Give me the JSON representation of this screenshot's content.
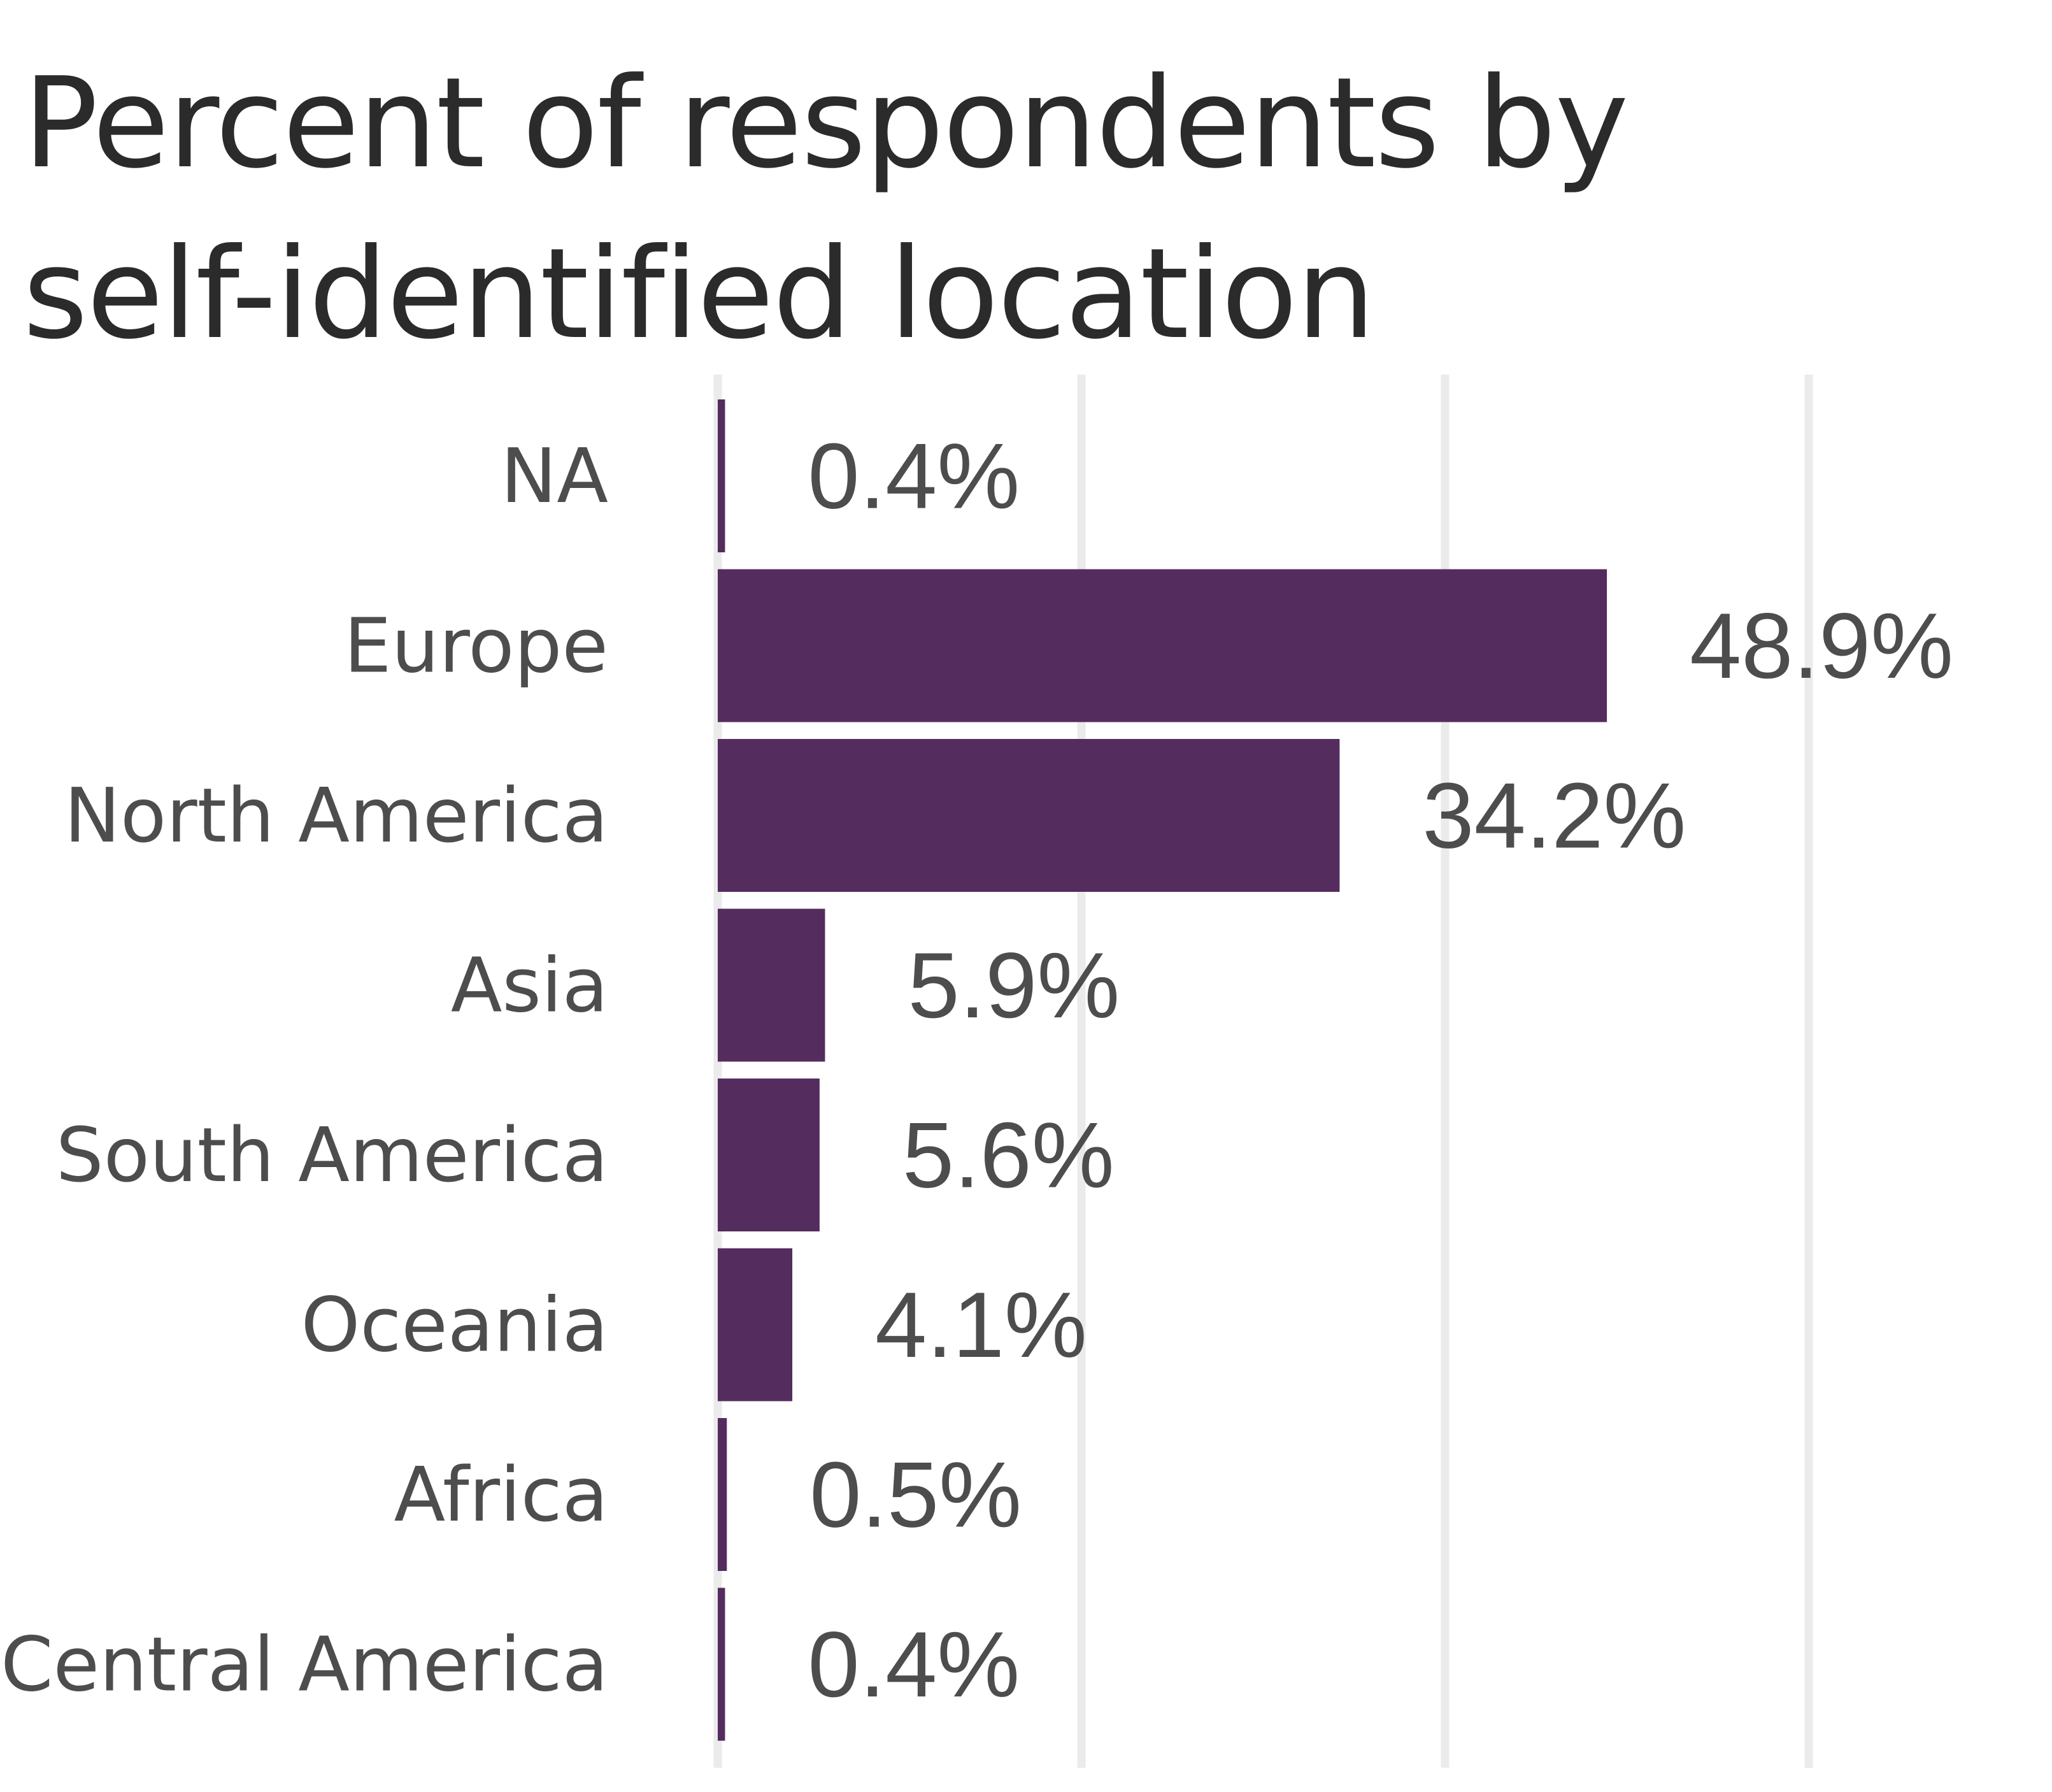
{
  "chart_data": {
    "type": "bar",
    "orientation": "horizontal",
    "title": "Percent of respondents by\nself-identified location",
    "xlabel": "",
    "ylabel": "",
    "categories": [
      "NA",
      "Europe",
      "North America",
      "Asia",
      "South America",
      "Oceania",
      "Africa",
      "Central America"
    ],
    "values": [
      0.4,
      48.9,
      34.2,
      5.9,
      5.6,
      4.1,
      0.5,
      0.4
    ],
    "value_labels": [
      "0.4%",
      "48.9%",
      "34.2%",
      "5.9%",
      "5.6%",
      "4.1%",
      "0.5%",
      "0.4%"
    ],
    "xlim": [
      0,
      60
    ],
    "x_gridlines": [
      0,
      20,
      40,
      60
    ],
    "x_tick_labels_shown": false,
    "grid": true,
    "legend": "none",
    "bar_color": "#542C5E",
    "gridline_color": "#EBEBEB",
    "text_color": "#4D4D4D",
    "title_color": "#2B2B2B"
  }
}
